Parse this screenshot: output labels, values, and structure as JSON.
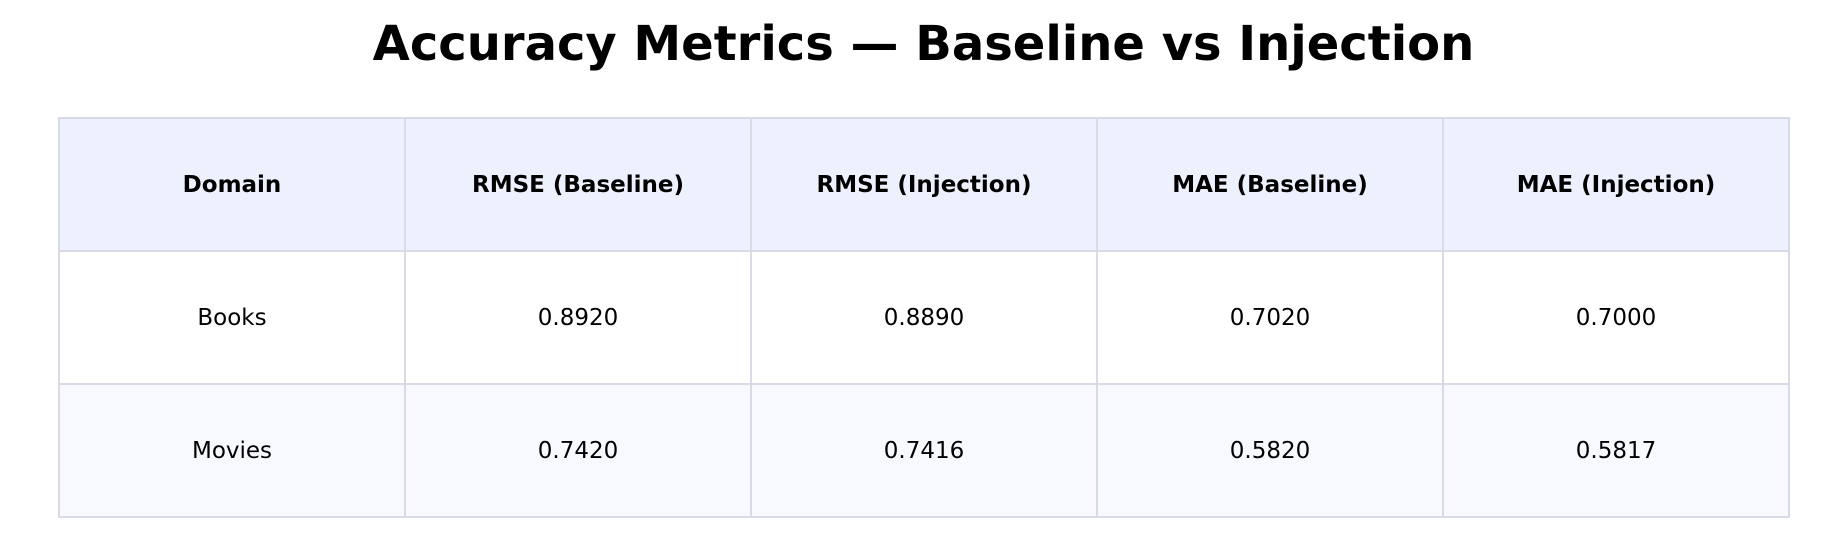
{
  "chart_data": {
    "type": "table",
    "title": "Accuracy Metrics — Baseline vs Injection",
    "columns": [
      "Domain",
      "RMSE (Baseline)",
      "RMSE (Injection)",
      "MAE (Baseline)",
      "MAE (Injection)"
    ],
    "rows": [
      [
        "Books",
        "0.8920",
        "0.8890",
        "0.7020",
        "0.7000"
      ],
      [
        "Movies",
        "0.7420",
        "0.7416",
        "0.5820",
        "0.5817"
      ]
    ]
  },
  "colors": {
    "header_bg": "#edf1fd",
    "row_alt_bg": "#f8f9fe",
    "border": "#d8dbe7"
  }
}
